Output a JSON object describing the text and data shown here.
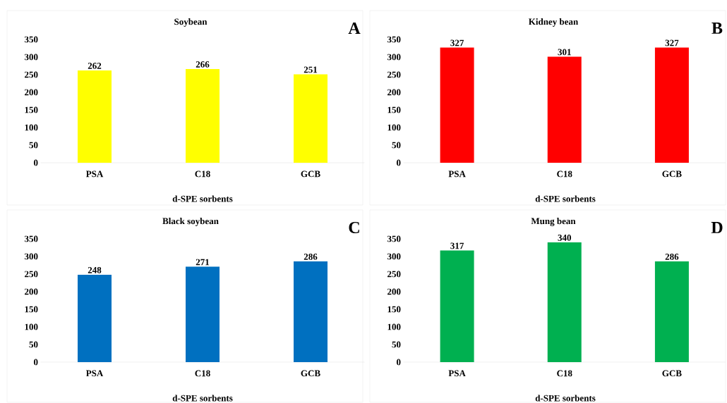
{
  "chart_data": [
    {
      "type": "bar",
      "title": "Soybean",
      "categories": [
        "PSA",
        "C18",
        "GCB"
      ],
      "values": [
        262,
        266,
        251
      ],
      "color": "#ffff00",
      "xlabel": "d-SPE sorbents",
      "ylim": [
        0,
        350
      ],
      "yticks": [
        0,
        50,
        100,
        150,
        200,
        250,
        300,
        350
      ],
      "data_labels": true,
      "annotations": [
        "A"
      ]
    },
    {
      "type": "bar",
      "title": "Kidney bean",
      "categories": [
        "PSA",
        "C18",
        "GCB"
      ],
      "values": [
        327,
        301,
        327
      ],
      "color": "#ff0000",
      "xlabel": "d-SPE sorbents",
      "ylim": [
        0,
        350
      ],
      "yticks": [
        0,
        50,
        100,
        150,
        200,
        250,
        300,
        350
      ],
      "data_labels": true,
      "annotations": [
        "B"
      ]
    },
    {
      "type": "bar",
      "title": "Black soybean",
      "categories": [
        "PSA",
        "C18",
        "GCB"
      ],
      "values": [
        248,
        271,
        286
      ],
      "color": "#0070c0",
      "xlabel": "d-SPE sorbents",
      "ylim": [
        0,
        350
      ],
      "yticks": [
        0,
        50,
        100,
        150,
        200,
        250,
        300,
        350
      ],
      "data_labels": true,
      "annotations": [
        "C"
      ]
    },
    {
      "type": "bar",
      "title": "Mung bean",
      "categories": [
        "PSA",
        "C18",
        "GCB"
      ],
      "values": [
        317,
        340,
        286
      ],
      "color": "#00b050",
      "xlabel": "d-SPE sorbents",
      "ylim": [
        0,
        350
      ],
      "yticks": [
        0,
        50,
        100,
        150,
        200,
        250,
        300,
        350
      ],
      "data_labels": true,
      "annotations": [
        "D"
      ]
    }
  ]
}
